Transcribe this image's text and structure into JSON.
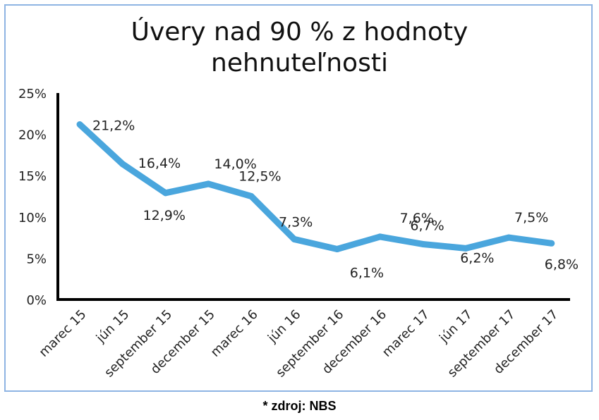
{
  "chart_data": {
    "type": "line",
    "title": [
      "Úvery nad 90 % z hodnoty",
      "nehnuteľnosti"
    ],
    "categories": [
      "marec 15",
      "jún 15",
      "september 15",
      "december 15",
      "marec 16",
      "jún 16",
      "september 16",
      "december 16",
      "marec 17",
      "jún 17",
      "september 17",
      "december 17"
    ],
    "values": [
      21.2,
      16.4,
      12.9,
      14.0,
      12.5,
      7.3,
      6.1,
      7.6,
      6.7,
      6.2,
      7.5,
      6.8
    ],
    "data_labels": [
      "21,2%",
      "16,4%",
      "12,9%",
      "14,0%",
      "12,5%",
      "7,3%",
      "6,1%",
      "7,6%",
      "6,7%",
      "6,2%",
      "7,5%",
      "6,8%"
    ],
    "yticks": [
      0,
      5,
      10,
      15,
      20,
      25
    ],
    "ytick_labels": [
      "0%",
      "5%",
      "10%",
      "15%",
      "20%",
      "25%"
    ],
    "ylim": [
      0,
      25
    ],
    "line_color": "#4aa6dd",
    "grid": false,
    "legend": "none"
  },
  "source_note": "* zdroj: NBS"
}
